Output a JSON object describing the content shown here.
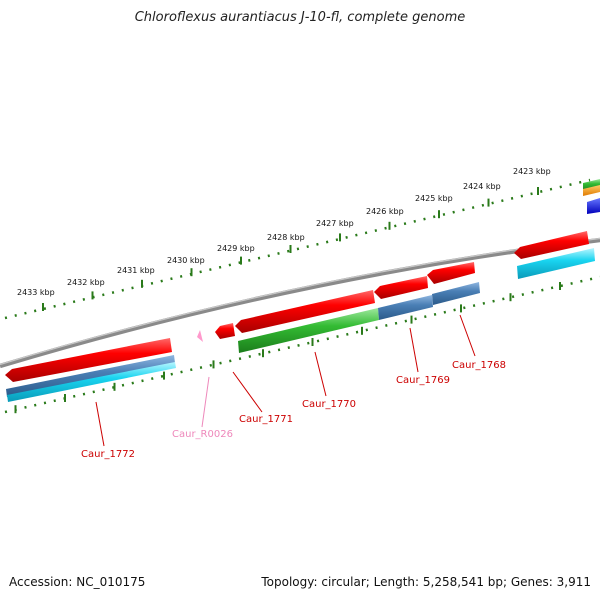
{
  "title": "Chloroflexus aurantiacus J-10-fl, complete genome",
  "footer": {
    "accession": "Accession: NC_010175",
    "summary": "Topology: circular; Length: 5,258,541 bp; Genes: 3,911"
  },
  "ruler_labels": [
    "2423 kbp",
    "2424 kbp",
    "2425 kbp",
    "2426 kbp",
    "2427 kbp",
    "2428 kbp",
    "2429 kbp",
    "2430 kbp",
    "2431 kbp",
    "2432 kbp",
    "2433 kbp"
  ],
  "genes": [
    {
      "name": "Caur_1772",
      "color": "#cc0000"
    },
    {
      "name": "Caur_R0026",
      "color": "#ee88bb"
    },
    {
      "name": "Caur_1771",
      "color": "#cc0000"
    },
    {
      "name": "Caur_1770",
      "color": "#cc0000"
    },
    {
      "name": "Caur_1769",
      "color": "#cc0000"
    },
    {
      "name": "Caur_1768",
      "color": "#cc0000"
    }
  ],
  "colors": {
    "cds": "#e00000",
    "rna": "#ff99cc",
    "steelblue": "#4a7fb5",
    "cyan": "#19d4f0",
    "green": "#33bb33",
    "ruler": "#2a7a1a",
    "backbone": "#888888"
  }
}
